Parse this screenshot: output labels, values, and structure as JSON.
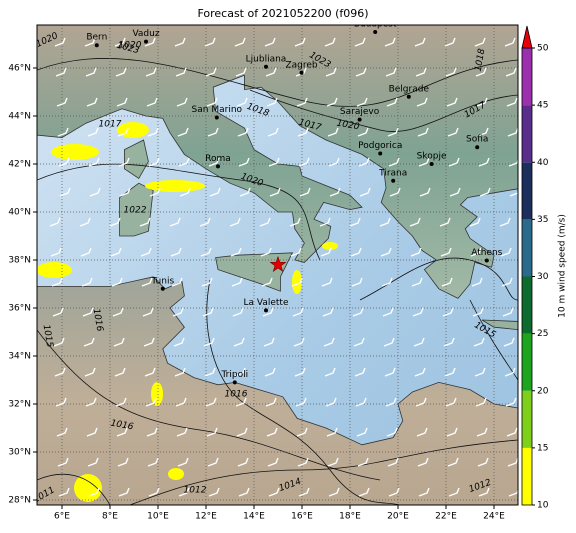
{
  "title": "Forecast of 2021052200 (f096)",
  "x_axis": {
    "ticks": [
      "6°E",
      "8°E",
      "10°E",
      "12°E",
      "14°E",
      "16°E",
      "18°E",
      "20°E",
      "22°E",
      "24°E"
    ]
  },
  "y_axis": {
    "ticks": [
      "46°N",
      "44°N",
      "42°N",
      "40°N",
      "38°N",
      "36°N",
      "34°N",
      "32°N",
      "30°N",
      "28°N"
    ]
  },
  "colorbar": {
    "label": "10 m wind speed (m/s)",
    "ticks": [
      10,
      15,
      20,
      25,
      30,
      35,
      40,
      45,
      50
    ],
    "colors": [
      "#ffff00",
      "#7fd01a",
      "#1ea51e",
      "#0e6b2e",
      "#2b6a8a",
      "#1c2f5c",
      "#5a2d8c",
      "#9b2fae"
    ],
    "extend_color": "#e8000b"
  },
  "cities": [
    "Bern",
    "Vaduz",
    "Budapest",
    "Ljubliana",
    "Zagreb",
    "Belgrade",
    "Sarajevo",
    "San Marino",
    "Podgorica",
    "Sofia",
    "Skopje",
    "Roma",
    "Tirana",
    "Athens",
    "Tunis",
    "La Valette",
    "Tripoli"
  ],
  "isobar_labels": [
    "1020",
    "1023",
    "1023",
    "1018",
    "1018",
    "1017",
    "1017",
    "1017",
    "1020",
    "1020",
    "1022",
    "1020",
    "1016",
    "1016",
    "1015",
    "1015",
    "1014",
    "1012",
    "1012",
    "1011",
    "1016"
  ]
}
